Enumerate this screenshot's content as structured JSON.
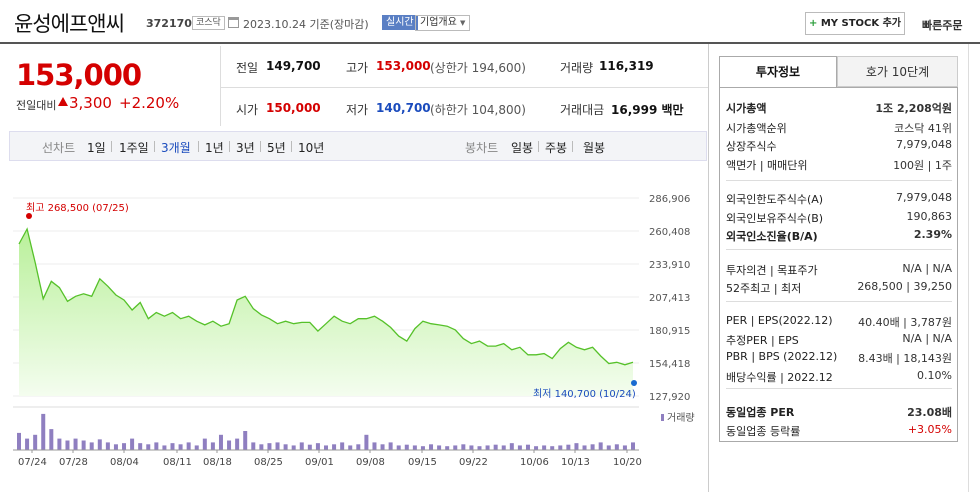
{
  "header": {
    "company": "윤성에프앤씨",
    "code": "372170",
    "market": "코스닥",
    "date": "2023.10.24 기준(장마감)",
    "realtime": "실시간",
    "company_info": "기업개요",
    "my_stock": "MY STOCK 추가",
    "quick_order": "빠른주문"
  },
  "price": {
    "current": "153,000",
    "change_label": "전일대비",
    "change": "3,300",
    "change_pct": "+2.20%"
  },
  "stats": {
    "prev_label": "전일",
    "prev": "149,700",
    "high_label": "고가",
    "high": "153,000",
    "upper_limit": "(상한가 194,600)",
    "volume_label": "거래량",
    "volume": "116,319",
    "open_label": "시가",
    "open": "150,000",
    "low_label": "저가",
    "low": "140,700",
    "lower_limit": "(하한가 104,800)",
    "amount_label": "거래대금",
    "amount": "16,999 백만"
  },
  "period_bar": {
    "label": "선차트",
    "periods": [
      "1일",
      "1주일",
      "3개월",
      "1년",
      "3년",
      "5년",
      "10년"
    ],
    "active": "3개월",
    "candle_label": "봉차트",
    "candles": [
      "일봉",
      "주봉",
      "월봉"
    ]
  },
  "chart_data": {
    "type": "area",
    "y_ticks": [
      "286,906",
      "260,408",
      "233,910",
      "207,413",
      "180,915",
      "154,418",
      "127,920"
    ],
    "ylim": [
      127920,
      286906
    ],
    "x_ticks": [
      "07/24",
      "07/28",
      "08/04",
      "08/11",
      "08/18",
      "08/25",
      "09/01",
      "09/08",
      "09/15",
      "09/22",
      "10/06",
      "10/13",
      "10/20"
    ],
    "max_label": "최고 268,500 (07/25)",
    "min_label": "최저 140,700 (10/24)",
    "volume_label": "거래량",
    "prices": [
      250000,
      262000,
      235000,
      206000,
      220000,
      215000,
      204000,
      208000,
      210000,
      208000,
      222000,
      216000,
      209000,
      205000,
      197000,
      203000,
      190000,
      195000,
      192000,
      195000,
      190000,
      192000,
      188000,
      185000,
      188000,
      184000,
      186000,
      205000,
      208000,
      198000,
      193000,
      190000,
      186000,
      188000,
      186000,
      187000,
      187000,
      180000,
      186000,
      192000,
      188000,
      186000,
      190000,
      190000,
      192000,
      188000,
      183000,
      176000,
      172000,
      182000,
      188000,
      186000,
      185000,
      184000,
      181000,
      174000,
      170000,
      172000,
      168000,
      168000,
      170000,
      165000,
      167000,
      161000,
      161000,
      162000,
      158000,
      166000,
      171000,
      167000,
      165000,
      167000,
      160000,
      154000,
      155000,
      153000,
      155000
    ],
    "volumes": [
      0.45,
      0.3,
      0.4,
      0.95,
      0.55,
      0.3,
      0.25,
      0.3,
      0.25,
      0.2,
      0.28,
      0.2,
      0.15,
      0.18,
      0.3,
      0.18,
      0.15,
      0.2,
      0.12,
      0.18,
      0.15,
      0.2,
      0.12,
      0.3,
      0.2,
      0.4,
      0.25,
      0.3,
      0.5,
      0.2,
      0.15,
      0.18,
      0.2,
      0.15,
      0.12,
      0.2,
      0.14,
      0.18,
      0.12,
      0.15,
      0.2,
      0.12,
      0.15,
      0.4,
      0.2,
      0.15,
      0.2,
      0.12,
      0.14,
      0.12,
      0.1,
      0.15,
      0.12,
      0.1,
      0.12,
      0.15,
      0.12,
      0.1,
      0.12,
      0.14,
      0.12,
      0.18,
      0.12,
      0.14,
      0.1,
      0.12,
      0.1,
      0.12,
      0.14,
      0.18,
      0.12,
      0.15,
      0.2,
      0.12,
      0.15,
      0.12,
      0.2
    ]
  },
  "right_panel": {
    "tab_active": "투자정보",
    "tab_other": "호가 10단계",
    "rows": [
      {
        "k": "시가총액",
        "v": "1조 2,208억원",
        "bold": true
      },
      {
        "k": "시가총액순위",
        "v": "코스닥 41위"
      },
      {
        "k": "상장주식수",
        "v": "7,979,048"
      },
      {
        "k": "액면가 | 매매단위",
        "v": "100원 | 1주"
      },
      {
        "k": "외국인한도주식수(A)",
        "v": "7,979,048"
      },
      {
        "k": "외국인보유주식수(B)",
        "v": "190,863"
      },
      {
        "k": "외국인소진율(B/A)",
        "v": "2.39%",
        "bold": true
      },
      {
        "k": "투자의견 | 목표주가",
        "v": "N/A | N/A"
      },
      {
        "k": "52주최고 | 최저",
        "v": "268,500 | 39,250"
      },
      {
        "k": "PER | EPS(2022.12)",
        "v": "40.40배 | 3,787원"
      },
      {
        "k": "추정PER | EPS",
        "v": "N/A | N/A"
      },
      {
        "k": "PBR | BPS (2022.12)",
        "v": "8.43배 | 18,143원"
      },
      {
        "k": "배당수익률 | 2022.12",
        "v": "0.10%"
      },
      {
        "k": "동일업종 PER",
        "v": "23.08배",
        "bold": true
      },
      {
        "k": "동일업종 등락률",
        "v": "+3.05%",
        "red": true
      }
    ]
  }
}
